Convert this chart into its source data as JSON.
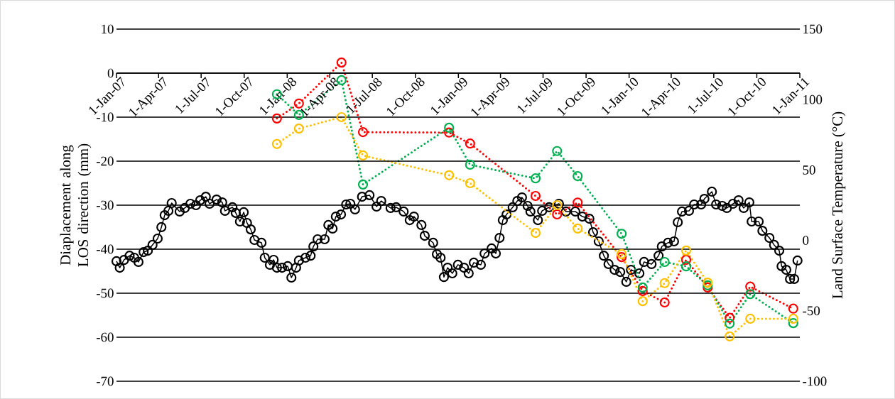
{
  "chart_data": {
    "type": "line",
    "ylabel": "Diaplacement along LOS direction (mm)",
    "y2label": "Land Surface Temperature (°C)",
    "xlim": [
      "2007-01-01",
      "2011-01-01"
    ],
    "xticks": [
      {
        "value": "2007-01-01",
        "label": "1-Jan-07"
      },
      {
        "value": "2007-04-01",
        "label": "1-Apr-07"
      },
      {
        "value": "2007-07-01",
        "label": "1-Jul-07"
      },
      {
        "value": "2007-10-01",
        "label": "1-Oct-07"
      },
      {
        "value": "2008-01-01",
        "label": "1-Jan-08"
      },
      {
        "value": "2008-04-01",
        "label": "1-Apr-08"
      },
      {
        "value": "2008-07-01",
        "label": "1-Jul-08"
      },
      {
        "value": "2008-10-01",
        "label": "1-Oct-08"
      },
      {
        "value": "2009-01-01",
        "label": "1-Jan-09"
      },
      {
        "value": "2009-04-01",
        "label": "1-Apr-09"
      },
      {
        "value": "2009-07-01",
        "label": "1-Jul-09"
      },
      {
        "value": "2009-10-01",
        "label": "1-Oct-09"
      },
      {
        "value": "2010-01-01",
        "label": "1-Jan-10"
      },
      {
        "value": "2010-04-01",
        "label": "1-Apr-10"
      },
      {
        "value": "2010-07-01",
        "label": "1-Jul-10"
      },
      {
        "value": "2010-10-01",
        "label": "1-Oct-10"
      },
      {
        "value": "2011-01-01",
        "label": "1-Jan-11"
      }
    ],
    "ylim": [
      -70,
      10
    ],
    "yticks": [
      -70,
      -60,
      -50,
      -40,
      -30,
      -20,
      -10,
      0,
      10
    ],
    "y2lim": [
      -100,
      150
    ],
    "y2ticks": [
      -100,
      -50,
      0,
      50,
      100,
      150
    ],
    "grid": "y",
    "series": [
      {
        "color": "#000000",
        "axis": "y2",
        "marker": "circle",
        "line_style": "solid",
        "x": [
          "2007-01-01",
          "2007-01-08",
          "2007-01-17",
          "2007-01-29",
          "2007-02-08",
          "2007-02-17",
          "2007-02-28",
          "2007-03-09",
          "2007-03-19",
          "2007-03-30",
          "2007-04-07",
          "2007-04-14",
          "2007-04-22",
          "2007-04-29",
          "2007-05-16",
          "2007-05-27",
          "2007-06-08",
          "2007-06-20",
          "2007-06-29",
          "2007-07-11",
          "2007-07-19",
          "2007-08-03",
          "2007-08-15",
          "2007-08-21",
          "2007-09-06",
          "2007-09-13",
          "2007-09-22",
          "2007-09-30",
          "2007-10-07",
          "2007-10-15",
          "2007-10-23",
          "2007-11-07",
          "2007-11-14",
          "2007-11-25",
          "2007-12-03",
          "2007-12-10",
          "2007-12-21",
          "2008-01-02",
          "2008-01-10",
          "2008-01-20",
          "2008-01-26",
          "2008-02-09",
          "2008-02-20",
          "2008-02-26",
          "2008-03-06",
          "2008-03-21",
          "2008-03-29",
          "2008-04-07",
          "2008-04-14",
          "2008-04-25",
          "2008-05-06",
          "2008-05-15",
          "2008-05-25",
          "2008-06-09",
          "2008-06-25",
          "2008-07-10",
          "2008-07-20",
          "2008-08-09",
          "2008-08-21",
          "2008-09-06",
          "2008-09-19",
          "2008-09-28",
          "2008-10-14",
          "2008-10-21",
          "2008-11-08",
          "2008-11-16",
          "2008-11-24",
          "2008-12-01",
          "2008-12-09",
          "2008-12-19",
          "2008-12-31",
          "2009-01-13",
          "2009-01-23",
          "2009-02-03",
          "2009-02-18",
          "2009-02-26",
          "2009-03-13",
          "2009-03-22",
          "2009-03-30",
          "2009-04-06",
          "2009-04-14",
          "2009-04-27",
          "2009-05-07",
          "2009-05-17",
          "2009-05-29",
          "2009-06-04",
          "2009-06-20",
          "2009-06-29",
          "2009-07-14",
          "2009-08-04",
          "2009-08-19",
          "2009-09-08",
          "2009-09-23",
          "2009-10-08",
          "2009-10-16",
          "2009-10-28",
          "2009-11-08",
          "2009-11-18",
          "2009-12-01",
          "2009-12-13",
          "2009-12-26",
          "2010-01-05",
          "2010-01-23",
          "2010-02-02",
          "2010-02-18",
          "2010-03-05",
          "2010-03-12",
          "2010-03-25",
          "2010-04-07",
          "2010-04-15",
          "2010-04-24",
          "2010-05-09",
          "2010-05-20",
          "2010-06-04",
          "2010-06-11",
          "2010-06-27",
          "2010-07-06",
          "2010-07-19",
          "2010-07-29",
          "2010-08-11",
          "2010-08-23",
          "2010-09-03",
          "2010-09-15",
          "2010-09-20",
          "2010-10-05",
          "2010-10-13",
          "2010-10-28",
          "2010-11-07",
          "2010-11-18",
          "2010-11-23",
          "2010-12-03",
          "2010-12-11",
          "2010-12-20",
          "2010-12-27"
        ],
        "values": [
          -14.8,
          -19.4,
          -13.9,
          -10.9,
          -12.3,
          -15.3,
          -8.3,
          -7.3,
          -3.2,
          1.3,
          9.4,
          17.9,
          21.0,
          26.5,
          20.5,
          23.0,
          26.0,
          25.0,
          28.5,
          31.0,
          26.0,
          29.0,
          27.0,
          21.0,
          23.5,
          19.5,
          13.4,
          20.0,
          12.4,
          7.8,
          0.3,
          -1.7,
          -12.3,
          -17.3,
          -13.8,
          -19.4,
          -19.4,
          -18.3,
          -26.4,
          -19.4,
          -14.3,
          -12.3,
          -10.9,
          -4.3,
          0.8,
          0.8,
          10.9,
          8.4,
          16.9,
          18.4,
          25.5,
          26.0,
          22.0,
          31.0,
          32.1,
          24.0,
          28.0,
          23.0,
          23.5,
          20.5,
          14.4,
          16.9,
          10.9,
          3.3,
          -1.7,
          -9.8,
          -12.3,
          -26.0,
          -19.4,
          -23.4,
          -17.3,
          -19.4,
          -23.4,
          -15.8,
          -17.3,
          -9.3,
          -5.7,
          -9.3,
          1.8,
          14.4,
          18.4,
          23.5,
          28.0,
          30.5,
          24.5,
          20.5,
          14.4,
          21.0,
          23.5,
          26.0,
          20.5,
          20.5,
          16.9,
          15.4,
          5.8,
          -0.7,
          -10.9,
          -16.8,
          -20.9,
          -22.4,
          -29.4,
          -20.9,
          -23.4,
          -15.3,
          -16.8,
          -10.9,
          -4.3,
          -1.7,
          -0.7,
          12.9,
          20.5,
          21.0,
          25.5,
          25.5,
          29.5,
          34.6,
          25.5,
          24.5,
          23.0,
          26.0,
          28.5,
          23.0,
          27.0,
          13.4,
          13.4,
          6.8,
          1.8,
          -3.2,
          -7.3,
          -18.3,
          -20.9,
          -27.4,
          -27.4,
          -14.3
        ]
      },
      {
        "color": "#ff0000",
        "axis": "y",
        "marker": "circle",
        "line_style": "dotted",
        "x": [
          "2007-12-10",
          "2008-01-26",
          "2008-04-26",
          "2008-06-11",
          "2008-12-12",
          "2009-01-26",
          "2009-06-15",
          "2009-07-31",
          "2009-09-13",
          "2009-12-16",
          "2010-01-30",
          "2010-03-18",
          "2010-05-03",
          "2010-06-18",
          "2010-08-04",
          "2010-09-17",
          "2010-12-18"
        ],
        "values": [
          -10.3,
          -6.9,
          2.4,
          -13.4,
          -13.5,
          -16.0,
          -27.9,
          -32.1,
          -29.4,
          -41.8,
          -49.5,
          -52.1,
          -42.4,
          -48.7,
          -55.6,
          -48.5,
          -53.5
        ]
      },
      {
        "color": "#00b050",
        "axis": "y",
        "marker": "circle",
        "line_style": "dotted",
        "x": [
          "2007-12-10",
          "2008-01-26",
          "2008-04-26",
          "2008-06-11",
          "2008-12-12",
          "2009-01-26",
          "2009-06-15",
          "2009-07-31",
          "2009-09-13",
          "2009-12-16",
          "2010-01-30",
          "2010-03-18",
          "2010-05-03",
          "2010-06-18",
          "2010-08-04",
          "2010-09-17",
          "2010-12-18"
        ],
        "values": [
          -4.8,
          -9.5,
          -1.6,
          -25.3,
          -12.4,
          -20.8,
          -23.9,
          -17.7,
          -23.4,
          -36.5,
          -48.7,
          -42.9,
          -43.9,
          -48.2,
          -56.9,
          -50.2,
          -56.8
        ]
      },
      {
        "color": "#ffc000",
        "axis": "y",
        "marker": "circle",
        "line_style": "dotted",
        "x": [
          "2007-12-10",
          "2008-01-26",
          "2008-04-26",
          "2008-06-11",
          "2008-12-12",
          "2009-01-26",
          "2009-06-15",
          "2009-07-31",
          "2009-09-13",
          "2009-12-16",
          "2010-01-30",
          "2010-03-18",
          "2010-05-03",
          "2010-06-18",
          "2010-08-04",
          "2010-09-17",
          "2010-12-18"
        ],
        "values": [
          -16.1,
          -12.6,
          -10.0,
          -18.7,
          -23.2,
          -25.0,
          -36.3,
          -30.0,
          -35.3,
          -41.1,
          -51.8,
          -47.7,
          -40.3,
          -47.6,
          -59.8,
          -55.8,
          -55.8
        ]
      }
    ]
  }
}
